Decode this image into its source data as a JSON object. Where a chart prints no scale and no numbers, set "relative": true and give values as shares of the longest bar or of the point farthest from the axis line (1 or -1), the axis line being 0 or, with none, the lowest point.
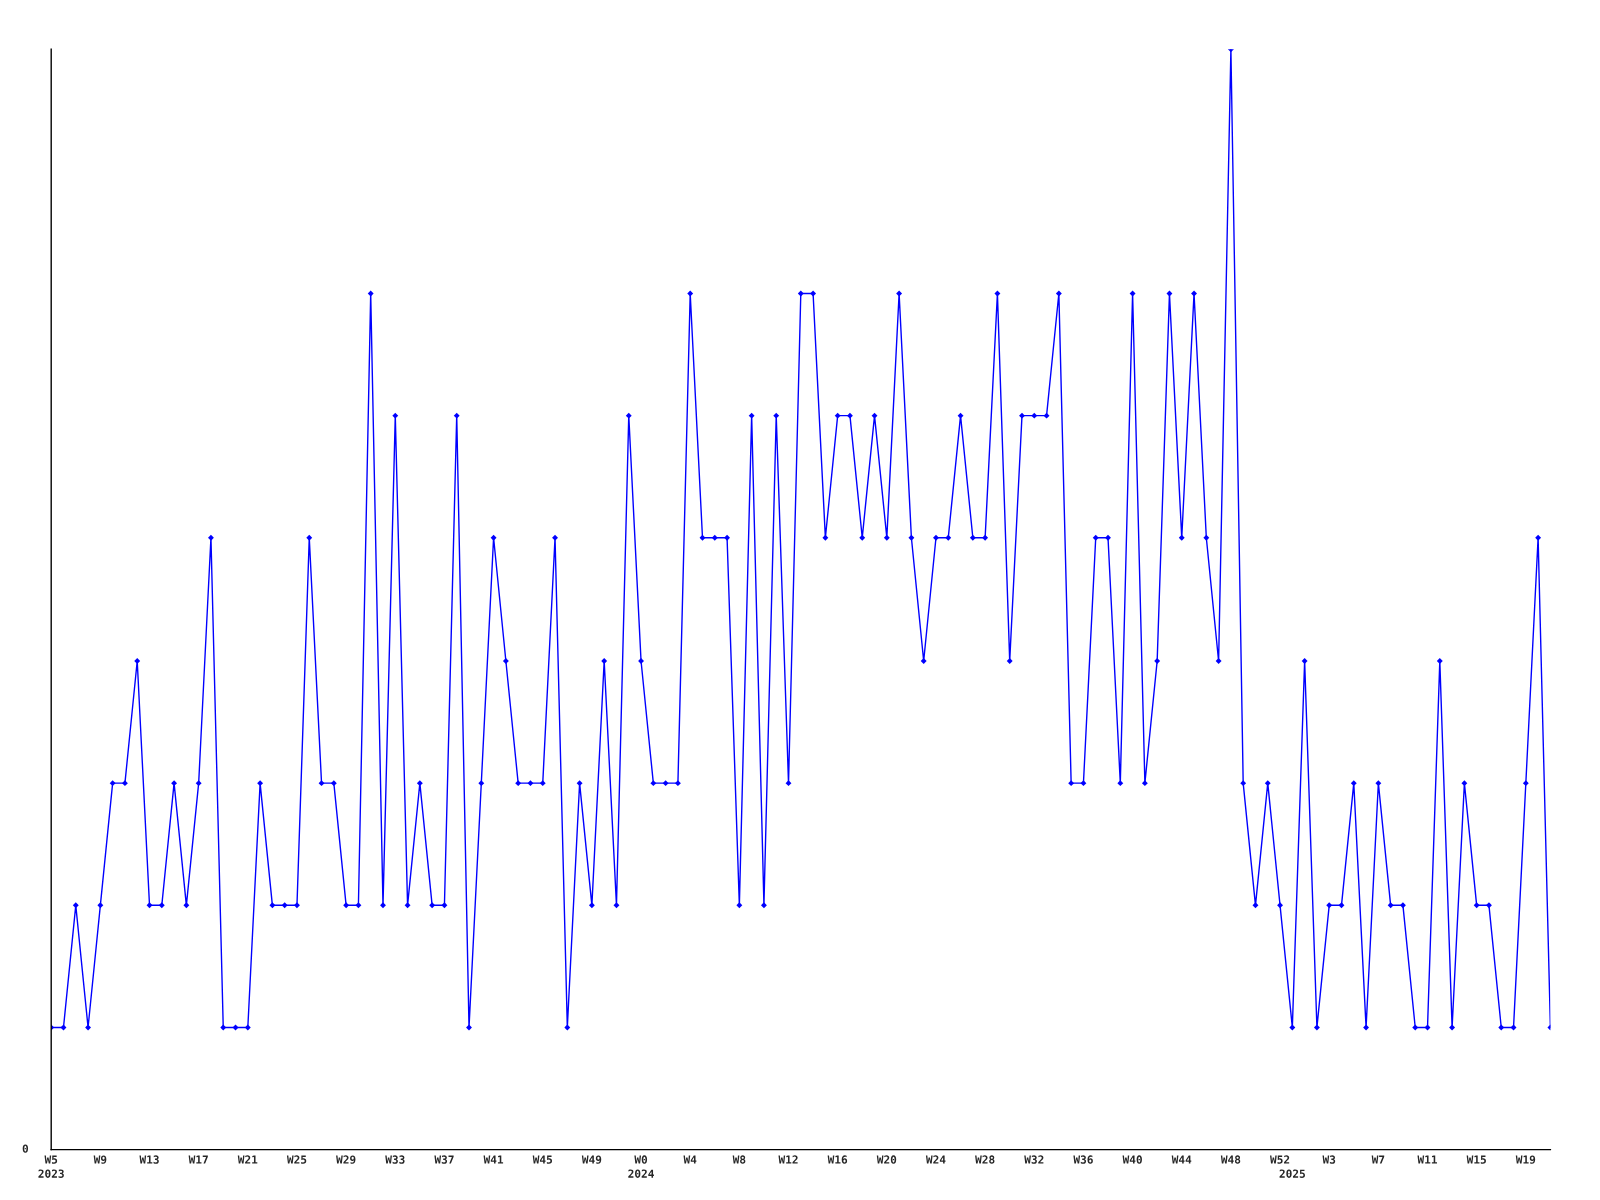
{
  "chart_data": {
    "type": "line",
    "relative": true,
    "marker": "diamond",
    "grid": false,
    "annotations": [
      "0"
    ],
    "categories": [
      "W5\n2023",
      null,
      null,
      null,
      "W9",
      null,
      null,
      null,
      "W13",
      null,
      null,
      null,
      "W17",
      null,
      null,
      null,
      "W21",
      null,
      null,
      null,
      "W25",
      null,
      null,
      null,
      "W29",
      null,
      null,
      null,
      "W33",
      null,
      null,
      null,
      "W37",
      null,
      null,
      null,
      "W41",
      null,
      null,
      null,
      "W45",
      null,
      null,
      null,
      "W49",
      null,
      null,
      null,
      "W0\n2024",
      null,
      null,
      null,
      "W4",
      null,
      null,
      null,
      "W8",
      null,
      null,
      null,
      "W12",
      null,
      null,
      null,
      "W16",
      null,
      null,
      null,
      "W20",
      null,
      null,
      null,
      "W24",
      null,
      null,
      null,
      "W28",
      null,
      null,
      null,
      "W32",
      null,
      null,
      null,
      "W36",
      null,
      null,
      null,
      "W40",
      null,
      null,
      null,
      "W44",
      null,
      null,
      null,
      "W48",
      null,
      null,
      null,
      "W52",
      "\n2025",
      null,
      null,
      "W3",
      null,
      null,
      null,
      "W7",
      null,
      null,
      null,
      "W11",
      null,
      null,
      null,
      "W15",
      null,
      null,
      null,
      "W19",
      null,
      null
    ],
    "series": [
      {
        "color": "#0000ff",
        "values": [
          0.111,
          0.111,
          0.222,
          0.111,
          0.222,
          0.333,
          0.333,
          0.444,
          0.222,
          0.222,
          0.333,
          0.222,
          0.333,
          0.556,
          0.111,
          0.111,
          0.111,
          0.333,
          0.222,
          0.222,
          0.222,
          0.556,
          0.333,
          0.333,
          0.222,
          0.222,
          0.778,
          0.222,
          0.667,
          0.222,
          0.333,
          0.222,
          0.222,
          0.667,
          0.111,
          0.333,
          0.556,
          0.444,
          0.333,
          0.333,
          0.333,
          0.556,
          0.111,
          0.333,
          0.222,
          0.444,
          0.222,
          0.667,
          0.444,
          0.333,
          0.333,
          0.333,
          0.778,
          0.556,
          0.556,
          0.556,
          0.222,
          0.667,
          0.222,
          0.667,
          0.333,
          0.778,
          0.778,
          0.556,
          0.667,
          0.667,
          0.556,
          0.667,
          0.556,
          0.778,
          0.556,
          0.444,
          0.556,
          0.556,
          0.667,
          0.556,
          0.556,
          0.778,
          0.444,
          0.667,
          0.667,
          0.667,
          0.778,
          0.333,
          0.333,
          0.556,
          0.556,
          0.333,
          0.778,
          0.333,
          0.444,
          0.778,
          0.556,
          0.778,
          0.556,
          0.444,
          1,
          0.333,
          0.222,
          0.333,
          0.222,
          0.111,
          0.444,
          0.111,
          0.222,
          0.222,
          0.333,
          0.111,
          0.333,
          0.222,
          0.222,
          0.111,
          0.111,
          0.444,
          0.111,
          0.333,
          0.222,
          0.222,
          0.111,
          0.111,
          0.333,
          0.556,
          0.111
        ]
      }
    ]
  }
}
